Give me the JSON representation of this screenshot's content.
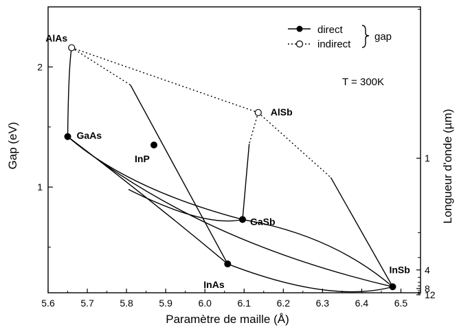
{
  "chart_data": {
    "type": "scatter",
    "xlabel": "Paramètre de maille (Å)",
    "ylabel": "Gap (eV)",
    "y2label": "Longueur d'onde (µm)",
    "xlim": [
      5.6,
      6.55
    ],
    "ylim": [
      0.12,
      2.5
    ],
    "x_ticks": [
      5.6,
      5.7,
      5.8,
      5.9,
      6.0,
      6.1,
      6.2,
      6.3,
      6.4,
      6.5
    ],
    "x_tick_labels": [
      "5.6",
      "5.7",
      "5.8",
      "5.9",
      "6.0",
      "6.1",
      "6.2",
      "6.3",
      "6.4",
      "6.5"
    ],
    "y_ticks": [
      1,
      2
    ],
    "y_tick_labels": [
      "1",
      "2"
    ],
    "y2_ticks": [
      1,
      4,
      8,
      12
    ],
    "y2_tick_labels": [
      "1",
      "4",
      "8",
      "12"
    ],
    "annotation": "T = 300K",
    "legend": {
      "direct": "direct",
      "indirect": "indirect",
      "group": "gap",
      "placement": "top-right"
    },
    "compounds": [
      {
        "name": "AlAs",
        "x": 5.66,
        "y": 2.16,
        "gap_type": "indirect"
      },
      {
        "name": "GaAs",
        "x": 5.65,
        "y": 1.42,
        "gap_type": "direct"
      },
      {
        "name": "InP",
        "x": 5.87,
        "y": 1.35,
        "gap_type": "direct"
      },
      {
        "name": "AlSb",
        "x": 6.136,
        "y": 1.62,
        "gap_type": "indirect"
      },
      {
        "name": "GaSb",
        "x": 6.096,
        "y": 0.73,
        "gap_type": "direct"
      },
      {
        "name": "InAs",
        "x": 6.058,
        "y": 0.36,
        "gap_type": "direct"
      },
      {
        "name": "InSb",
        "x": 6.479,
        "y": 0.17,
        "gap_type": "direct"
      }
    ],
    "curves": [
      {
        "kind": "solid",
        "points": [
          [
            5.66,
            2.16
          ],
          [
            5.652,
            1.99
          ],
          [
            5.65,
            1.42
          ]
        ]
      },
      {
        "kind": "dotted",
        "points": [
          [
            5.66,
            2.16
          ],
          [
            5.81,
            1.85
          ]
        ]
      },
      {
        "kind": "dotted",
        "points": [
          [
            5.66,
            2.16
          ],
          [
            6.136,
            1.62
          ]
        ]
      },
      {
        "kind": "solid",
        "points": [
          [
            5.81,
            1.85
          ],
          [
            6.058,
            0.36
          ]
        ]
      },
      {
        "kind": "dotted",
        "points": [
          [
            6.136,
            1.62
          ],
          [
            6.113,
            1.36
          ]
        ]
      },
      {
        "kind": "solid",
        "points": [
          [
            6.113,
            1.36
          ],
          [
            6.096,
            0.73
          ]
        ]
      },
      {
        "kind": "dotted",
        "points": [
          [
            6.136,
            1.62
          ],
          [
            6.321,
            1.08
          ]
        ]
      },
      {
        "kind": "solid",
        "points": [
          [
            6.321,
            1.08
          ],
          [
            6.479,
            0.17
          ]
        ]
      },
      {
        "kind": "solid",
        "points": [
          [
            5.65,
            1.42
          ],
          [
            5.86,
            0.9
          ],
          [
            6.058,
            0.36
          ]
        ]
      },
      {
        "kind": "solid",
        "points": [
          [
            5.65,
            1.42
          ],
          [
            5.98,
            0.55
          ],
          [
            6.479,
            0.17
          ]
        ]
      },
      {
        "kind": "solid",
        "points": [
          [
            5.65,
            1.42
          ],
          [
            5.805,
            0.98
          ],
          [
            6.096,
            0.73
          ]
        ]
      },
      {
        "kind": "solid",
        "points": [
          [
            6.096,
            0.73
          ],
          [
            6.325,
            0.6
          ],
          [
            6.479,
            0.17
          ]
        ]
      },
      {
        "kind": "solid",
        "points": [
          [
            6.058,
            0.36
          ],
          [
            6.32,
            0.03
          ],
          [
            6.479,
            0.17
          ]
        ]
      },
      {
        "kind": "solid",
        "points": [
          [
            5.805,
            0.98
          ],
          [
            6.0,
            0.66
          ],
          [
            6.096,
            0.73
          ]
        ]
      }
    ]
  }
}
